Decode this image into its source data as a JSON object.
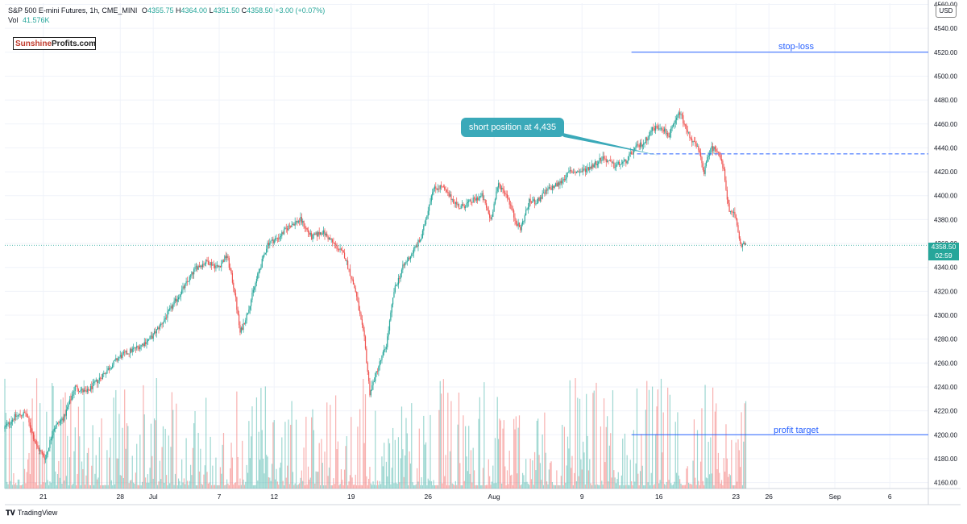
{
  "header": {
    "symbol": "S&P 500 E-mini Futures, 1h, CME_MINI",
    "o_label": "O",
    "o_value": "4355.75",
    "h_label": "H",
    "h_value": "4364.00",
    "l_label": "L",
    "l_value": "4351.50",
    "c_label": "C",
    "c_value": "4358.50",
    "change": "+3.00 (+0.07%)",
    "vol_label": "Vol",
    "vol_value": "41.576K"
  },
  "logo": {
    "part1": "Sunshine",
    "part2": "Profits.com"
  },
  "currency": "USD",
  "footer": {
    "brand": "TradingView"
  },
  "price_tag": {
    "price": "4358.50",
    "countdown": "02:59"
  },
  "colors": {
    "up": "#26a69a",
    "down": "#ef5350",
    "line": "#2962ff",
    "callout": "#3aa9b9"
  },
  "chart_data": {
    "type": "candlestick",
    "interval": "1h",
    "y_ticks": [
      4160,
      4180,
      4200,
      4220,
      4240,
      4260,
      4280,
      4300,
      4320,
      4340,
      4360,
      4380,
      4400,
      4420,
      4440,
      4460,
      4480,
      4500,
      4520,
      4540,
      4560
    ],
    "y_tick_labels": [
      "4160.00",
      "4180.00",
      "4200.00",
      "4220.00",
      "4240.00",
      "4260.00",
      "4280.00",
      "4300.00",
      "4320.00",
      "4340.00",
      "4360.00",
      "4380.00",
      "4400.00",
      "4420.00",
      "4440.00",
      "4460.00",
      "4480.00",
      "4500.00",
      "4520.00",
      "4540.00",
      "4560.00"
    ],
    "ylim": [
      4155,
      4561
    ],
    "x_ticks": [
      {
        "label": "21",
        "day": 0
      },
      {
        "label": "28",
        "day": 7
      },
      {
        "label": "Jul",
        "day": 10
      },
      {
        "label": "7",
        "day": 16
      },
      {
        "label": "12",
        "day": 21
      },
      {
        "label": "19",
        "day": 28
      },
      {
        "label": "26",
        "day": 35
      },
      {
        "label": "Aug",
        "day": 41
      },
      {
        "label": "9",
        "day": 49
      },
      {
        "label": "16",
        "day": 56
      },
      {
        "label": "23",
        "day": 63
      },
      {
        "label": "26",
        "day": 66
      },
      {
        "label": "Sep",
        "day": 72
      },
      {
        "label": "6",
        "day": 77
      }
    ],
    "xlim": [
      -3.5,
      80.5
    ],
    "price_path": [
      [
        -3.5,
        4205
      ],
      [
        -2.5,
        4215
      ],
      [
        -1.5,
        4218
      ],
      [
        -0.5,
        4190
      ],
      [
        0.3,
        4180
      ],
      [
        1.0,
        4205
      ],
      [
        2.0,
        4215
      ],
      [
        3.0,
        4240
      ],
      [
        4.0,
        4235
      ],
      [
        5.0,
        4245
      ],
      [
        6.0,
        4255
      ],
      [
        7.0,
        4265
      ],
      [
        8.0,
        4270
      ],
      [
        9.0,
        4275
      ],
      [
        10.0,
        4282
      ],
      [
        11.0,
        4295
      ],
      [
        12.0,
        4310
      ],
      [
        13.0,
        4325
      ],
      [
        14.0,
        4340
      ],
      [
        15.0,
        4345
      ],
      [
        16.0,
        4340
      ],
      [
        16.8,
        4350
      ],
      [
        17.5,
        4320
      ],
      [
        18.0,
        4285
      ],
      [
        18.6,
        4300
      ],
      [
        19.5,
        4330
      ],
      [
        20.5,
        4360
      ],
      [
        21.5,
        4365
      ],
      [
        22.5,
        4375
      ],
      [
        23.5,
        4380
      ],
      [
        24.5,
        4365
      ],
      [
        25.5,
        4370
      ],
      [
        26.5,
        4360
      ],
      [
        27.5,
        4350
      ],
      [
        28.5,
        4320
      ],
      [
        29.3,
        4280
      ],
      [
        29.8,
        4235
      ],
      [
        30.5,
        4255
      ],
      [
        31.3,
        4275
      ],
      [
        32.0,
        4320
      ],
      [
        32.8,
        4340
      ],
      [
        33.5,
        4350
      ],
      [
        34.5,
        4365
      ],
      [
        35.0,
        4385
      ],
      [
        35.5,
        4405
      ],
      [
        36.3,
        4408
      ],
      [
        37.0,
        4400
      ],
      [
        38.0,
        4390
      ],
      [
        39.0,
        4395
      ],
      [
        40.0,
        4400
      ],
      [
        40.8,
        4380
      ],
      [
        41.5,
        4410
      ],
      [
        42.3,
        4400
      ],
      [
        43.0,
        4380
      ],
      [
        43.5,
        4372
      ],
      [
        44.3,
        4395
      ],
      [
        45.0,
        4395
      ],
      [
        46.0,
        4405
      ],
      [
        47.0,
        4410
      ],
      [
        48.0,
        4420
      ],
      [
        49.0,
        4420
      ],
      [
        50.0,
        4425
      ],
      [
        51.0,
        4432
      ],
      [
        52.0,
        4425
      ],
      [
        53.0,
        4428
      ],
      [
        54.0,
        4440
      ],
      [
        54.8,
        4445
      ],
      [
        55.5,
        4456
      ],
      [
        56.3,
        4458
      ],
      [
        57.0,
        4450
      ],
      [
        57.5,
        4460
      ],
      [
        58.0,
        4470
      ],
      [
        58.6,
        4455
      ],
      [
        59.2,
        4445
      ],
      [
        59.7,
        4438
      ],
      [
        60.2,
        4420
      ],
      [
        60.8,
        4440
      ],
      [
        61.5,
        4438
      ],
      [
        62.0,
        4420
      ],
      [
        62.5,
        4385
      ],
      [
        63.0,
        4385
      ],
      [
        63.5,
        4360
      ],
      [
        64.0,
        4358
      ]
    ],
    "volume_max_k": 50,
    "hlines": [
      {
        "label": "stop-loss",
        "price": 4520,
        "from_day": 53.5,
        "style": "solid"
      },
      {
        "label": "profit target",
        "price": 4200,
        "from_day": 53.5,
        "style": "solid"
      },
      {
        "label": "short position at 4,435",
        "price": 4435,
        "from_day": 54.0,
        "style": "dashed"
      }
    ],
    "last_price": 4358.5
  }
}
